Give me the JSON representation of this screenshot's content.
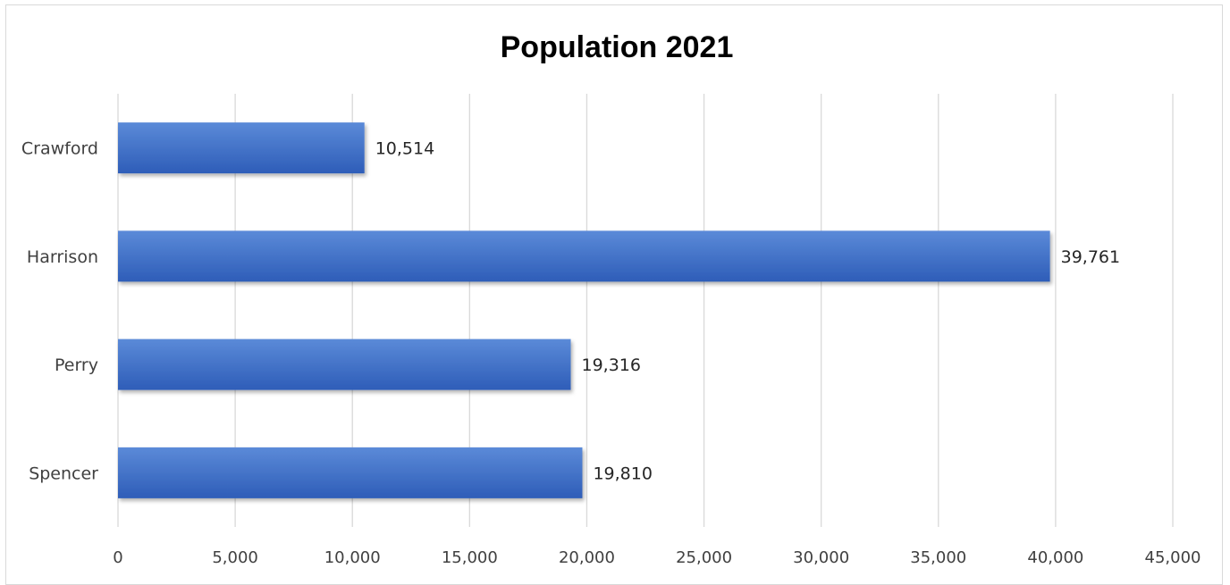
{
  "chart_data": {
    "type": "bar",
    "orientation": "horizontal",
    "title": "Population 2021",
    "categories": [
      "Crawford",
      "Harrison",
      "Perry",
      "Spencer"
    ],
    "values": [
      10514,
      39761,
      19316,
      19810
    ],
    "value_labels": [
      "10,514",
      "39,761",
      "19,316",
      "19,810"
    ],
    "xlim": [
      0,
      45000
    ],
    "x_ticks": [
      0,
      5000,
      10000,
      15000,
      20000,
      25000,
      30000,
      35000,
      40000,
      45000
    ],
    "x_tick_labels": [
      "0",
      "5,000",
      "10,000",
      "15,000",
      "20,000",
      "25,000",
      "30,000",
      "35,000",
      "40,000",
      "45,000"
    ],
    "grid": "vertical",
    "legend": "none",
    "bar_color": "#4472C4"
  }
}
